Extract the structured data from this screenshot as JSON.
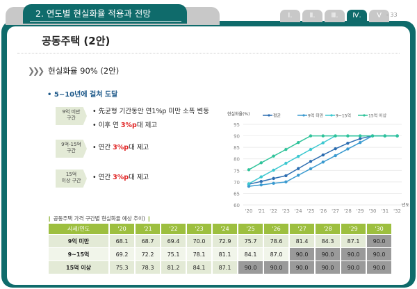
{
  "header": {
    "section_title": "2. 연도별 현실화율 적용과 전망",
    "tabs": [
      "Ⅰ.",
      "Ⅱ.",
      "Ⅲ.",
      "Ⅳ.",
      "Ⅴ"
    ],
    "active_tab": "Ⅳ.",
    "page": "- 33"
  },
  "title": "공동주택 (2안)",
  "section": "현실화율 90% (2안)",
  "subtitle": "• 5~10년에 걸쳐 도달",
  "groups": [
    {
      "label1": "9억 미만",
      "label2": "구간",
      "bullets": [
        {
          "pre": "• 先균형 기간동안 연1%p 미만 소폭 변동",
          "red": "",
          "post": ""
        },
        {
          "pre": "• 이후 연 ",
          "red": "3%p",
          "post": "대 제고"
        }
      ]
    },
    {
      "label1": "9억-15억",
      "label2": "구간",
      "bullets": [
        {
          "pre": "• 연간 ",
          "red": "3%p",
          "post": "대 제고"
        }
      ]
    },
    {
      "label1": "15억",
      "label2": "이상 구간",
      "bullets": [
        {
          "pre": "• 연간 ",
          "red": "3%p",
          "post": "대 제고"
        }
      ]
    }
  ],
  "table": {
    "title": "공동주택 가격 구간별 현실화율 예상 추이",
    "headers": [
      "시세/연도",
      "'20",
      "'21",
      "'22",
      "'23",
      "'24",
      "'25",
      "'26",
      "'27",
      "'28",
      "'29",
      "'30"
    ],
    "rows": [
      {
        "label": "9억 미만",
        "values": [
          "68.1",
          "68.7",
          "69.4",
          "70.0",
          "72.9",
          "75.7",
          "78.6",
          "81.4",
          "84.3",
          "87.1",
          "90.0"
        ],
        "highlight_from": 10
      },
      {
        "label": "9~15억",
        "values": [
          "69.2",
          "72.2",
          "75.1",
          "78.1",
          "81.1",
          "84.1",
          "87.0",
          "90.0",
          "90.0",
          "90.0",
          "90.0"
        ],
        "highlight_from": 7
      },
      {
        "label": "15억 이상",
        "values": [
          "75.3",
          "78.3",
          "81.2",
          "84.1",
          "87.1",
          "90.0",
          "90.0",
          "90.0",
          "90.0",
          "90.0",
          "90.0"
        ],
        "highlight_from": 5
      }
    ]
  },
  "chart_data": {
    "type": "line",
    "ylabel": "현실화율(%)",
    "xlabel": "년도",
    "ylim": [
      60,
      95
    ],
    "yticks": [
      60,
      65,
      70,
      75,
      80,
      85,
      90,
      95
    ],
    "grid": true,
    "legend": "top",
    "x": [
      "'20",
      "'21",
      "'22",
      "'23",
      "'24",
      "'25",
      "'26",
      "'27",
      "'28",
      "'29",
      "'30",
      "'31",
      "'32"
    ],
    "series": [
      {
        "name": "평균",
        "color": "#2b6cb0",
        "values": [
          69.0,
          70.2,
          71.5,
          72.7,
          75.8,
          78.9,
          81.7,
          84.4,
          86.8,
          88.8,
          90,
          90,
          90
        ]
      },
      {
        "name": "9억 미만",
        "color": "#3a9ad0",
        "values": [
          68.1,
          68.7,
          69.4,
          70.0,
          72.9,
          75.7,
          78.6,
          81.4,
          84.3,
          87.1,
          90,
          90,
          90
        ]
      },
      {
        "name": "9~15억",
        "color": "#3cc8d0",
        "values": [
          69.2,
          72.2,
          75.1,
          78.1,
          81.1,
          84.1,
          87.0,
          90,
          90,
          90,
          90,
          90,
          90
        ]
      },
      {
        "name": "15억 이상",
        "color": "#2fc39a",
        "values": [
          75.3,
          78.3,
          81.2,
          84.1,
          87.1,
          90,
          90,
          90,
          90,
          90,
          90,
          90,
          90
        ]
      }
    ]
  }
}
